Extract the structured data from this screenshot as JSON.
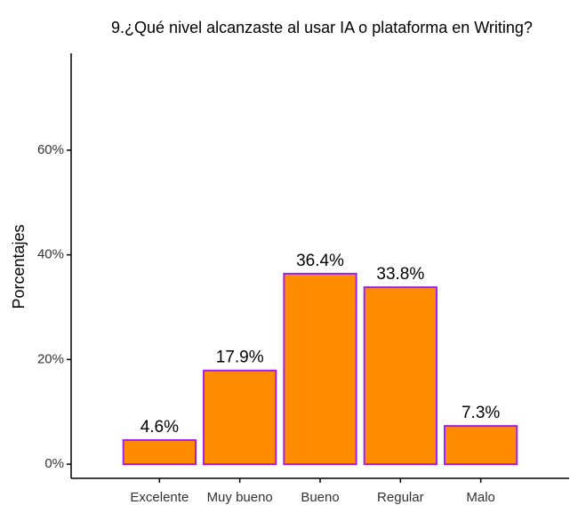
{
  "chart_data": {
    "type": "bar",
    "title": "9.¿Qué nivel alcanzaste al usar IA o plataforma en Writing?",
    "y_label": "Porcentajes",
    "categories": [
      "Excelente",
      "Muy bueno",
      "Bueno",
      "Regular",
      "Malo"
    ],
    "values": [
      4.6,
      17.9,
      36.4,
      33.8,
      7.3
    ],
    "value_labels": [
      "4.6%",
      "17.9%",
      "36.4%",
      "33.8%",
      "7.3%"
    ],
    "color": "#ff8c00",
    "edge_color": "#a020f0",
    "ylim": [
      -2.7,
      78.5
    ],
    "yticks": [
      {
        "value": 0,
        "label": "0%"
      },
      {
        "value": 20,
        "label": "20%"
      },
      {
        "value": 40,
        "label": "40%"
      },
      {
        "value": 60,
        "label": "60%"
      }
    ],
    "grid": false
  }
}
